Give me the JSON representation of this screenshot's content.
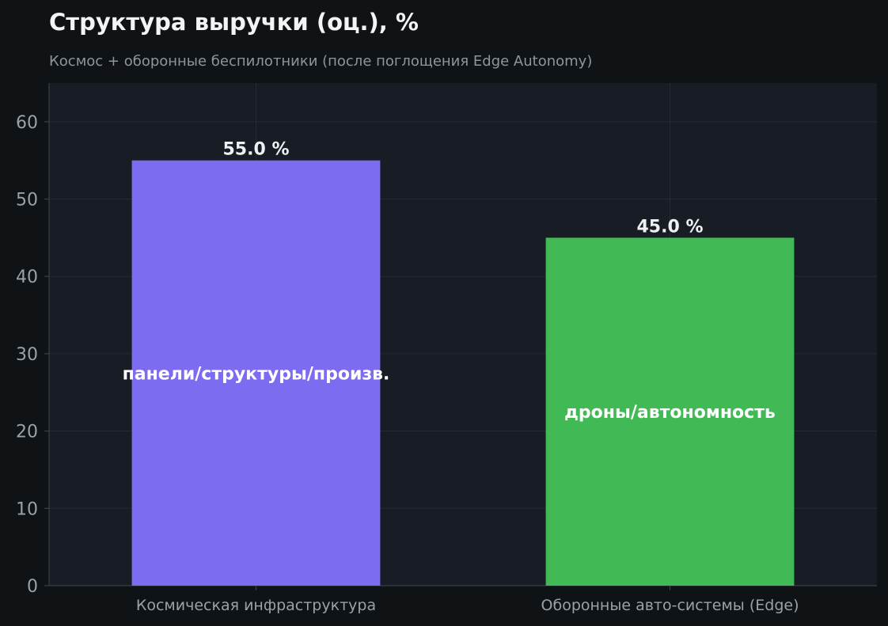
{
  "chart_data": {
    "type": "bar",
    "title": "Структура выручки (оц.), %",
    "subtitle": "Космос + оборонные беспилотники (после поглощения Edge Autonomy)",
    "xlabel": "",
    "ylabel": "",
    "ylim": [
      0,
      65
    ],
    "yticks": [
      0,
      10,
      20,
      30,
      40,
      50,
      60
    ],
    "grid": true,
    "categories": [
      "Космическая инфраструктура",
      "Оборонные авто-системы (Edge)"
    ],
    "values": [
      55.0,
      45.0
    ],
    "value_labels": [
      "55.0 %",
      "45.0 %"
    ],
    "inner_labels": [
      "панели/структуры/произв.",
      "дроны/автономность"
    ],
    "colors": [
      "#7b6cf0",
      "#41ba55"
    ],
    "background": "#101316",
    "plot_background": "#181c24",
    "grid_color": "#252a33"
  }
}
